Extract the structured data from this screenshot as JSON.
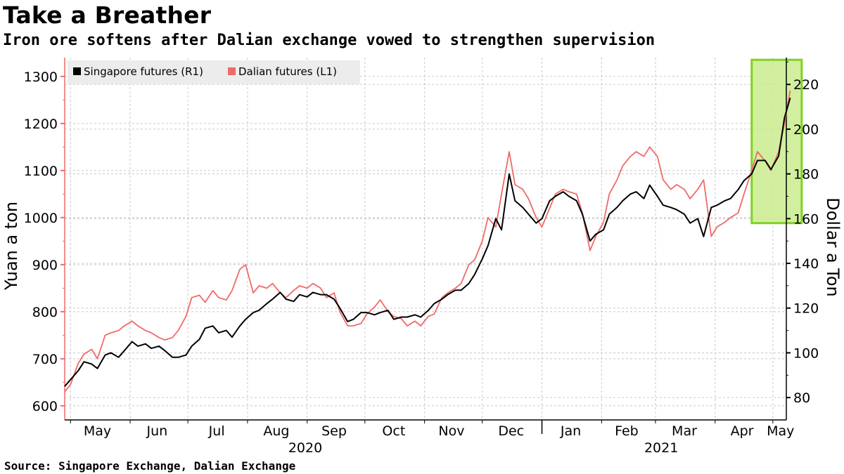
{
  "title": "Take a Breather",
  "subtitle": "Iron ore softens after Dalian exchange vowed to strengthen supervision",
  "source": "Source: Singapore Exchange, Dalian Exchange",
  "colors": {
    "singapore": "#000000",
    "dalian": "#f06a6a",
    "highlight_fill": "#c9ec8e",
    "highlight_border": "#7dd320",
    "grid": "#c8c8c8"
  },
  "chart_data": {
    "type": "line",
    "left_axis": {
      "label": "Yuan a ton",
      "ylim": [
        570,
        1340
      ],
      "ticks": [
        600,
        700,
        800,
        900,
        1000,
        1100,
        1200,
        1300
      ]
    },
    "right_axis": {
      "label": "Dollar a Ton",
      "ylim": [
        70,
        232
      ],
      "ticks": [
        80,
        100,
        120,
        140,
        160,
        180,
        200,
        220
      ]
    },
    "x_axis": {
      "range": [
        "2020-04-28",
        "2021-05-08"
      ],
      "month_labels": [
        {
          "label": "May",
          "date": "2020-05-15"
        },
        {
          "label": "Jun",
          "date": "2020-06-15"
        },
        {
          "label": "Jul",
          "date": "2020-07-16"
        },
        {
          "label": "Aug",
          "date": "2020-08-16"
        },
        {
          "label": "Sep",
          "date": "2020-09-15"
        },
        {
          "label": "Oct",
          "date": "2020-10-16"
        },
        {
          "label": "Nov",
          "date": "2020-11-15"
        },
        {
          "label": "Dec",
          "date": "2020-12-16"
        },
        {
          "label": "Jan",
          "date": "2021-01-16"
        },
        {
          "label": "Feb",
          "date": "2021-02-14"
        },
        {
          "label": "Mar",
          "date": "2021-03-16"
        },
        {
          "label": "Apr",
          "date": "2021-04-15"
        },
        {
          "label": "May",
          "date": "2021-05-05"
        }
      ],
      "year_labels": [
        {
          "label": "2020",
          "date": "2020-08-31"
        },
        {
          "label": "2021",
          "date": "2021-03-04"
        }
      ],
      "separators": [
        "2021-01-01"
      ]
    },
    "legend": {
      "placement": "top-left"
    },
    "grid": true,
    "highlight": {
      "x_range": [
        "2021-04-20",
        "2021-05-16"
      ],
      "y_range_right": [
        158,
        231
      ]
    },
    "series": [
      {
        "name": "Singapore futures (R1)",
        "axis": "right",
        "x": [
          "2020-04-28",
          "2020-05-01",
          "2020-05-05",
          "2020-05-08",
          "2020-05-12",
          "2020-05-15",
          "2020-05-19",
          "2020-05-22",
          "2020-05-26",
          "2020-05-29",
          "2020-06-02",
          "2020-06-05",
          "2020-06-09",
          "2020-06-12",
          "2020-06-16",
          "2020-06-19",
          "2020-06-23",
          "2020-06-26",
          "2020-06-30",
          "2020-07-03",
          "2020-07-07",
          "2020-07-10",
          "2020-07-14",
          "2020-07-17",
          "2020-07-21",
          "2020-07-24",
          "2020-07-28",
          "2020-07-31",
          "2020-08-04",
          "2020-08-07",
          "2020-08-11",
          "2020-08-14",
          "2020-08-18",
          "2020-08-21",
          "2020-08-25",
          "2020-08-28",
          "2020-09-01",
          "2020-09-04",
          "2020-09-08",
          "2020-09-11",
          "2020-09-15",
          "2020-09-18",
          "2020-09-22",
          "2020-09-25",
          "2020-09-29",
          "2020-10-02",
          "2020-10-06",
          "2020-10-09",
          "2020-10-13",
          "2020-10-16",
          "2020-10-20",
          "2020-10-23",
          "2020-10-27",
          "2020-10-30",
          "2020-11-03",
          "2020-11-06",
          "2020-11-10",
          "2020-11-13",
          "2020-11-17",
          "2020-11-20",
          "2020-11-24",
          "2020-11-27",
          "2020-12-01",
          "2020-12-04",
          "2020-12-08",
          "2020-12-11",
          "2020-12-15",
          "2020-12-18",
          "2020-12-22",
          "2020-12-25",
          "2020-12-29",
          "2021-01-01",
          "2021-01-05",
          "2021-01-08",
          "2021-01-12",
          "2021-01-15",
          "2021-01-19",
          "2021-01-22",
          "2021-01-26",
          "2021-01-29",
          "2021-02-02",
          "2021-02-05",
          "2021-02-09",
          "2021-02-12",
          "2021-02-16",
          "2021-02-19",
          "2021-02-23",
          "2021-02-26",
          "2021-03-02",
          "2021-03-05",
          "2021-03-09",
          "2021-03-12",
          "2021-03-16",
          "2021-03-19",
          "2021-03-23",
          "2021-03-26",
          "2021-03-30",
          "2021-04-02",
          "2021-04-06",
          "2021-04-09",
          "2021-04-13",
          "2021-04-16",
          "2021-04-20",
          "2021-04-23",
          "2021-04-27",
          "2021-04-30",
          "2021-05-04",
          "2021-05-07",
          "2021-05-10"
        ],
        "y": [
          85,
          88,
          92,
          96,
          95,
          93,
          99,
          100,
          98,
          101,
          105,
          103,
          104,
          102,
          103,
          101,
          98,
          98,
          99,
          103,
          106,
          111,
          112,
          109,
          110,
          107,
          112,
          115,
          118,
          119,
          122,
          124,
          127,
          124,
          123,
          126,
          125,
          127,
          126,
          126,
          124,
          120,
          114,
          115,
          118,
          118,
          117,
          118,
          119,
          115,
          116,
          116,
          117,
          116,
          119,
          122,
          124,
          126,
          128,
          128,
          131,
          135,
          142,
          148,
          160,
          155,
          180,
          168,
          165,
          162,
          158,
          160,
          168,
          170,
          172,
          170,
          168,
          162,
          150,
          153,
          155,
          162,
          165,
          168,
          171,
          172,
          169,
          175,
          170,
          166,
          165,
          164,
          162,
          158,
          160,
          152,
          165,
          166,
          168,
          169,
          173,
          177,
          180,
          186,
          186,
          182,
          188,
          205,
          214
        ]
      },
      {
        "name": "Dalian futures (L1)",
        "axis": "left",
        "x": [
          "2020-04-28",
          "2020-05-01",
          "2020-05-05",
          "2020-05-08",
          "2020-05-12",
          "2020-05-15",
          "2020-05-19",
          "2020-05-22",
          "2020-05-26",
          "2020-05-29",
          "2020-06-02",
          "2020-06-05",
          "2020-06-09",
          "2020-06-12",
          "2020-06-16",
          "2020-06-19",
          "2020-06-23",
          "2020-06-26",
          "2020-06-30",
          "2020-07-03",
          "2020-07-07",
          "2020-07-10",
          "2020-07-14",
          "2020-07-17",
          "2020-07-21",
          "2020-07-24",
          "2020-07-28",
          "2020-07-31",
          "2020-08-04",
          "2020-08-07",
          "2020-08-11",
          "2020-08-14",
          "2020-08-18",
          "2020-08-21",
          "2020-08-25",
          "2020-08-28",
          "2020-09-01",
          "2020-09-04",
          "2020-09-08",
          "2020-09-11",
          "2020-09-15",
          "2020-09-18",
          "2020-09-22",
          "2020-09-25",
          "2020-09-29",
          "2020-10-02",
          "2020-10-06",
          "2020-10-09",
          "2020-10-13",
          "2020-10-16",
          "2020-10-20",
          "2020-10-23",
          "2020-10-27",
          "2020-10-30",
          "2020-11-03",
          "2020-11-06",
          "2020-11-10",
          "2020-11-13",
          "2020-11-17",
          "2020-11-20",
          "2020-11-24",
          "2020-11-27",
          "2020-12-01",
          "2020-12-04",
          "2020-12-08",
          "2020-12-11",
          "2020-12-15",
          "2020-12-18",
          "2020-12-22",
          "2020-12-25",
          "2020-12-29",
          "2021-01-01",
          "2021-01-05",
          "2021-01-08",
          "2021-01-12",
          "2021-01-15",
          "2021-01-19",
          "2021-01-22",
          "2021-01-26",
          "2021-01-29",
          "2021-02-02",
          "2021-02-05",
          "2021-02-09",
          "2021-02-12",
          "2021-02-16",
          "2021-02-19",
          "2021-02-23",
          "2021-02-26",
          "2021-03-02",
          "2021-03-05",
          "2021-03-09",
          "2021-03-12",
          "2021-03-16",
          "2021-03-19",
          "2021-03-23",
          "2021-03-26",
          "2021-03-30",
          "2021-04-02",
          "2021-04-06",
          "2021-04-09",
          "2021-04-13",
          "2021-04-16",
          "2021-04-20",
          "2021-04-23",
          "2021-04-27",
          "2021-04-30",
          "2021-05-04",
          "2021-05-07",
          "2021-05-10"
        ],
        "y": [
          630,
          645,
          690,
          710,
          720,
          700,
          750,
          755,
          760,
          770,
          780,
          770,
          760,
          755,
          745,
          740,
          745,
          760,
          790,
          830,
          835,
          820,
          845,
          830,
          825,
          845,
          890,
          900,
          840,
          855,
          850,
          860,
          840,
          830,
          845,
          855,
          850,
          860,
          850,
          830,
          840,
          800,
          770,
          770,
          775,
          795,
          810,
          825,
          800,
          790,
          785,
          770,
          780,
          770,
          790,
          795,
          830,
          840,
          850,
          860,
          900,
          910,
          950,
          1000,
          980,
          1050,
          1140,
          1070,
          1060,
          1040,
          1000,
          980,
          1020,
          1050,
          1060,
          1055,
          1050,
          1010,
          930,
          960,
          990,
          1050,
          1080,
          1110,
          1130,
          1140,
          1130,
          1150,
          1130,
          1080,
          1060,
          1070,
          1060,
          1040,
          1060,
          1080,
          960,
          980,
          990,
          1000,
          1010,
          1050,
          1100,
          1140,
          1120,
          1100,
          1140,
          1200,
          1270
        ]
      }
    ]
  }
}
